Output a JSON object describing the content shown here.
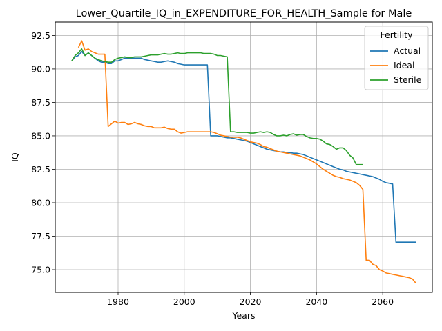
{
  "chart_data": {
    "type": "line",
    "title": "Lower_Quartile_IQ_in_EXPENDITURE_FOR_HEALTH_Sample for Male",
    "xlabel": "Years",
    "ylabel": "IQ",
    "xlim": [
      1961,
      2075
    ],
    "ylim": [
      73.3,
      93.5
    ],
    "xticks": [
      1980,
      2000,
      2020,
      2040,
      2060
    ],
    "xtick_labels": [
      "1980",
      "2000",
      "2020",
      "2040",
      "2060"
    ],
    "yticks": [
      75.0,
      77.5,
      80.0,
      82.5,
      85.0,
      87.5,
      90.0,
      92.5
    ],
    "ytick_labels": [
      "75.0",
      "77.5",
      "80.0",
      "82.5",
      "85.0",
      "87.5",
      "90.0",
      "92.5"
    ],
    "grid": true,
    "legend": {
      "title": "Fertility",
      "position": "top-right"
    },
    "series": [
      {
        "name": "Actual",
        "color": "#1f77b4",
        "points": [
          [
            1966,
            90.6
          ],
          [
            1967,
            90.9
          ],
          [
            1968,
            91.0
          ],
          [
            1969,
            91.3
          ],
          [
            1970,
            91.0
          ],
          [
            1971,
            91.2
          ],
          [
            1972,
            91.0
          ],
          [
            1973,
            90.8
          ],
          [
            1974,
            90.6
          ],
          [
            1975,
            90.5
          ],
          [
            1976,
            90.5
          ],
          [
            1977,
            90.4
          ],
          [
            1978,
            90.4
          ],
          [
            1979,
            90.6
          ],
          [
            1980,
            90.6
          ],
          [
            1981,
            90.7
          ],
          [
            1982,
            90.8
          ],
          [
            1983,
            90.8
          ],
          [
            1984,
            90.8
          ],
          [
            1985,
            90.8
          ],
          [
            1986,
            90.8
          ],
          [
            1987,
            90.8
          ],
          [
            1988,
            90.7
          ],
          [
            1989,
            90.65
          ],
          [
            1990,
            90.6
          ],
          [
            1991,
            90.55
          ],
          [
            1992,
            90.5
          ],
          [
            1993,
            90.5
          ],
          [
            1994,
            90.55
          ],
          [
            1995,
            90.6
          ],
          [
            1996,
            90.55
          ],
          [
            1997,
            90.5
          ],
          [
            1998,
            90.4
          ],
          [
            1999,
            90.35
          ],
          [
            2000,
            90.3
          ],
          [
            2001,
            90.3
          ],
          [
            2002,
            90.3
          ],
          [
            2003,
            90.3
          ],
          [
            2004,
            90.3
          ],
          [
            2005,
            90.3
          ],
          [
            2006,
            90.3
          ],
          [
            2007,
            90.3
          ],
          [
            2008,
            85.0
          ],
          [
            2009,
            85.0
          ],
          [
            2010,
            85.0
          ],
          [
            2011,
            84.95
          ],
          [
            2012,
            84.9
          ],
          [
            2013,
            84.85
          ],
          [
            2014,
            84.85
          ],
          [
            2015,
            84.8
          ],
          [
            2016,
            84.75
          ],
          [
            2017,
            84.7
          ],
          [
            2018,
            84.65
          ],
          [
            2019,
            84.6
          ],
          [
            2020,
            84.5
          ],
          [
            2021,
            84.4
          ],
          [
            2022,
            84.3
          ],
          [
            2023,
            84.2
          ],
          [
            2024,
            84.1
          ],
          [
            2025,
            84.0
          ],
          [
            2026,
            83.95
          ],
          [
            2027,
            83.9
          ],
          [
            2028,
            83.85
          ],
          [
            2029,
            83.8
          ],
          [
            2030,
            83.8
          ],
          [
            2031,
            83.75
          ],
          [
            2032,
            83.75
          ],
          [
            2033,
            83.7
          ],
          [
            2034,
            83.7
          ],
          [
            2035,
            83.65
          ],
          [
            2036,
            83.6
          ],
          [
            2037,
            83.5
          ],
          [
            2038,
            83.4
          ],
          [
            2039,
            83.3
          ],
          [
            2040,
            83.2
          ],
          [
            2041,
            83.1
          ],
          [
            2042,
            83.0
          ],
          [
            2043,
            82.9
          ],
          [
            2044,
            82.8
          ],
          [
            2045,
            82.7
          ],
          [
            2046,
            82.6
          ],
          [
            2047,
            82.5
          ],
          [
            2048,
            82.45
          ],
          [
            2049,
            82.35
          ],
          [
            2050,
            82.3
          ],
          [
            2051,
            82.25
          ],
          [
            2052,
            82.2
          ],
          [
            2053,
            82.15
          ],
          [
            2054,
            82.1
          ],
          [
            2055,
            82.05
          ],
          [
            2056,
            82.0
          ],
          [
            2057,
            81.95
          ],
          [
            2058,
            81.85
          ],
          [
            2059,
            81.75
          ],
          [
            2060,
            81.6
          ],
          [
            2061,
            81.5
          ],
          [
            2062,
            81.45
          ],
          [
            2063,
            81.4
          ],
          [
            2064,
            77.05
          ],
          [
            2065,
            77.05
          ],
          [
            2066,
            77.05
          ],
          [
            2067,
            77.05
          ],
          [
            2068,
            77.05
          ],
          [
            2069,
            77.05
          ],
          [
            2070,
            77.05
          ]
        ]
      },
      {
        "name": "Ideal",
        "color": "#ff7f0e",
        "points": [
          [
            1968,
            91.6
          ],
          [
            1969,
            92.1
          ],
          [
            1970,
            91.4
          ],
          [
            1971,
            91.5
          ],
          [
            1972,
            91.3
          ],
          [
            1973,
            91.2
          ],
          [
            1974,
            91.1
          ],
          [
            1975,
            91.1
          ],
          [
            1976,
            91.1
          ],
          [
            1977,
            85.7
          ],
          [
            1978,
            85.9
          ],
          [
            1979,
            86.1
          ],
          [
            1980,
            85.95
          ],
          [
            1981,
            86.0
          ],
          [
            1982,
            86.0
          ],
          [
            1983,
            85.85
          ],
          [
            1984,
            85.9
          ],
          [
            1985,
            86.0
          ],
          [
            1986,
            85.9
          ],
          [
            1987,
            85.85
          ],
          [
            1988,
            85.75
          ],
          [
            1989,
            85.7
          ],
          [
            1990,
            85.7
          ],
          [
            1991,
            85.6
          ],
          [
            1992,
            85.6
          ],
          [
            1993,
            85.6
          ],
          [
            1994,
            85.65
          ],
          [
            1995,
            85.55
          ],
          [
            1996,
            85.5
          ],
          [
            1997,
            85.5
          ],
          [
            1998,
            85.3
          ],
          [
            1999,
            85.2
          ],
          [
            2000,
            85.25
          ],
          [
            2001,
            85.3
          ],
          [
            2002,
            85.3
          ],
          [
            2003,
            85.3
          ],
          [
            2004,
            85.3
          ],
          [
            2005,
            85.3
          ],
          [
            2006,
            85.3
          ],
          [
            2007,
            85.3
          ],
          [
            2008,
            85.3
          ],
          [
            2009,
            85.25
          ],
          [
            2010,
            85.15
          ],
          [
            2011,
            85.05
          ],
          [
            2012,
            85.0
          ],
          [
            2013,
            84.95
          ],
          [
            2014,
            84.9
          ],
          [
            2015,
            84.9
          ],
          [
            2016,
            84.9
          ],
          [
            2017,
            84.85
          ],
          [
            2018,
            84.75
          ],
          [
            2019,
            84.65
          ],
          [
            2020,
            84.55
          ],
          [
            2021,
            84.5
          ],
          [
            2022,
            84.45
          ],
          [
            2023,
            84.35
          ],
          [
            2024,
            84.2
          ],
          [
            2025,
            84.15
          ],
          [
            2026,
            84.05
          ],
          [
            2027,
            83.95
          ],
          [
            2028,
            83.85
          ],
          [
            2029,
            83.8
          ],
          [
            2030,
            83.75
          ],
          [
            2031,
            83.7
          ],
          [
            2032,
            83.65
          ],
          [
            2033,
            83.6
          ],
          [
            2034,
            83.55
          ],
          [
            2035,
            83.5
          ],
          [
            2036,
            83.4
          ],
          [
            2037,
            83.3
          ],
          [
            2038,
            83.2
          ],
          [
            2039,
            83.05
          ],
          [
            2040,
            82.9
          ],
          [
            2041,
            82.7
          ],
          [
            2042,
            82.5
          ],
          [
            2043,
            82.35
          ],
          [
            2044,
            82.2
          ],
          [
            2045,
            82.05
          ],
          [
            2046,
            81.95
          ],
          [
            2047,
            81.9
          ],
          [
            2048,
            81.8
          ],
          [
            2049,
            81.75
          ],
          [
            2050,
            81.7
          ],
          [
            2051,
            81.6
          ],
          [
            2052,
            81.5
          ],
          [
            2053,
            81.3
          ],
          [
            2054,
            81.0
          ],
          [
            2055,
            75.7
          ],
          [
            2056,
            75.7
          ],
          [
            2057,
            75.4
          ],
          [
            2058,
            75.3
          ],
          [
            2059,
            75.0
          ],
          [
            2060,
            74.9
          ],
          [
            2061,
            74.75
          ],
          [
            2062,
            74.7
          ],
          [
            2063,
            74.65
          ],
          [
            2064,
            74.6
          ],
          [
            2065,
            74.55
          ],
          [
            2066,
            74.5
          ],
          [
            2067,
            74.45
          ],
          [
            2068,
            74.4
          ],
          [
            2069,
            74.3
          ],
          [
            2070,
            74.0
          ]
        ]
      },
      {
        "name": "Sterile",
        "color": "#2ca02c",
        "points": [
          [
            1966,
            90.6
          ],
          [
            1967,
            91.0
          ],
          [
            1968,
            91.2
          ],
          [
            1969,
            91.5
          ],
          [
            1970,
            91.0
          ],
          [
            1971,
            91.2
          ],
          [
            1972,
            91.0
          ],
          [
            1973,
            90.8
          ],
          [
            1974,
            90.7
          ],
          [
            1975,
            90.6
          ],
          [
            1976,
            90.55
          ],
          [
            1977,
            90.5
          ],
          [
            1978,
            90.5
          ],
          [
            1979,
            90.7
          ],
          [
            1980,
            90.8
          ],
          [
            1981,
            90.85
          ],
          [
            1982,
            90.9
          ],
          [
            1983,
            90.85
          ],
          [
            1984,
            90.85
          ],
          [
            1985,
            90.9
          ],
          [
            1986,
            90.9
          ],
          [
            1987,
            90.9
          ],
          [
            1988,
            90.95
          ],
          [
            1989,
            91.0
          ],
          [
            1990,
            91.05
          ],
          [
            1991,
            91.05
          ],
          [
            1992,
            91.05
          ],
          [
            1993,
            91.1
          ],
          [
            1994,
            91.15
          ],
          [
            1995,
            91.1
          ],
          [
            1996,
            91.1
          ],
          [
            1997,
            91.15
          ],
          [
            1998,
            91.2
          ],
          [
            1999,
            91.15
          ],
          [
            2000,
            91.15
          ],
          [
            2001,
            91.2
          ],
          [
            2002,
            91.2
          ],
          [
            2003,
            91.2
          ],
          [
            2004,
            91.2
          ],
          [
            2005,
            91.2
          ],
          [
            2006,
            91.15
          ],
          [
            2007,
            91.15
          ],
          [
            2008,
            91.15
          ],
          [
            2009,
            91.1
          ],
          [
            2010,
            91.0
          ],
          [
            2011,
            91.0
          ],
          [
            2012,
            90.95
          ],
          [
            2013,
            90.9
          ],
          [
            2014,
            85.3
          ],
          [
            2015,
            85.3
          ],
          [
            2016,
            85.25
          ],
          [
            2017,
            85.25
          ],
          [
            2018,
            85.25
          ],
          [
            2019,
            85.25
          ],
          [
            2020,
            85.2
          ],
          [
            2021,
            85.2
          ],
          [
            2022,
            85.25
          ],
          [
            2023,
            85.3
          ],
          [
            2024,
            85.25
          ],
          [
            2025,
            85.3
          ],
          [
            2026,
            85.25
          ],
          [
            2027,
            85.1
          ],
          [
            2028,
            85.0
          ],
          [
            2029,
            85.0
          ],
          [
            2030,
            85.05
          ],
          [
            2031,
            85.0
          ],
          [
            2032,
            85.1
          ],
          [
            2033,
            85.15
          ],
          [
            2034,
            85.05
          ],
          [
            2035,
            85.1
          ],
          [
            2036,
            85.1
          ],
          [
            2037,
            84.95
          ],
          [
            2038,
            84.85
          ],
          [
            2039,
            84.8
          ],
          [
            2040,
            84.8
          ],
          [
            2041,
            84.75
          ],
          [
            2042,
            84.6
          ],
          [
            2043,
            84.4
          ],
          [
            2044,
            84.35
          ],
          [
            2045,
            84.2
          ],
          [
            2046,
            84.0
          ],
          [
            2047,
            84.1
          ],
          [
            2048,
            84.1
          ],
          [
            2049,
            83.9
          ],
          [
            2050,
            83.55
          ],
          [
            2051,
            83.35
          ],
          [
            2052,
            82.85
          ],
          [
            2053,
            82.85
          ],
          [
            2054,
            82.85
          ]
        ]
      }
    ]
  }
}
